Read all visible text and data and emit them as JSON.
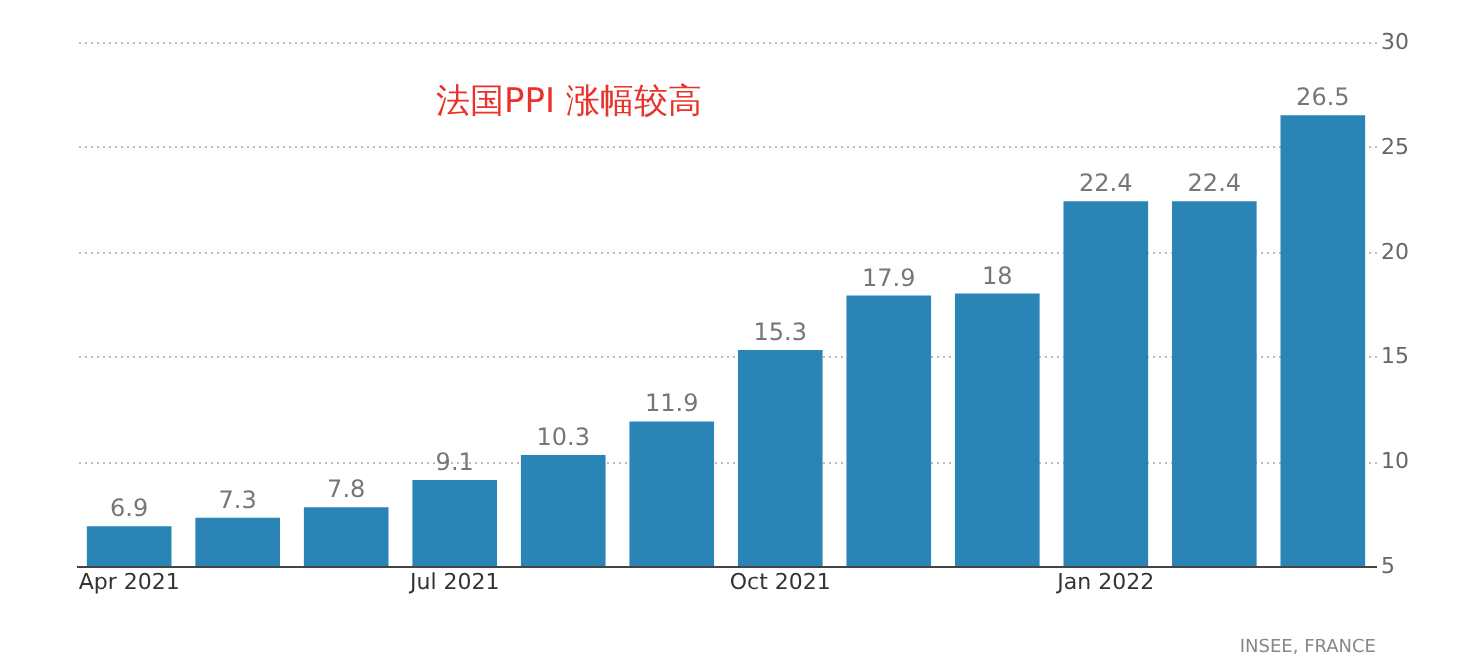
{
  "chart_data": {
    "type": "bar",
    "title": "法国PPI 涨幅较高",
    "categories": [
      "Apr 2021",
      null,
      null,
      "Jul 2021",
      null,
      null,
      "Oct 2021",
      null,
      null,
      "Jan 2022",
      null,
      null
    ],
    "values": [
      6.9,
      7.3,
      7.8,
      9.1,
      10.3,
      11.9,
      15.3,
      17.9,
      18,
      22.4,
      22.4,
      26.5
    ],
    "color": "#2b84b6",
    "ylim": [
      5,
      30
    ],
    "yticks": [
      5,
      10,
      15,
      20,
      25,
      30
    ],
    "grid": "y",
    "data_labels": true,
    "annotations": [
      "INSEE, FRANCE"
    ]
  }
}
